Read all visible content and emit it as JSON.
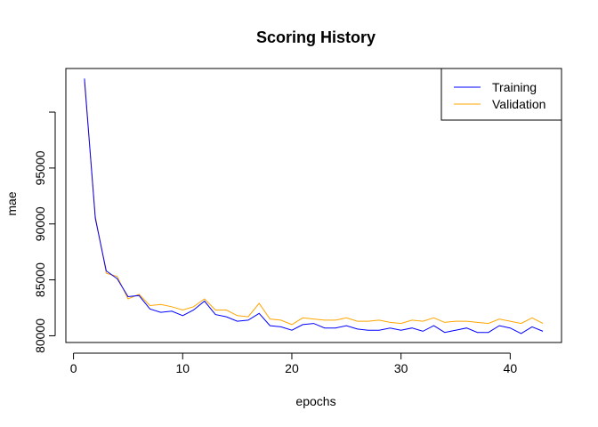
{
  "chart_data": {
    "type": "line",
    "title": "Scoring History",
    "xlabel": "epochs",
    "ylabel": "mae",
    "xlim": [
      -0.7,
      44.7
    ],
    "ylim": [
      79400,
      103900
    ],
    "xticks": [
      0,
      10,
      20,
      30,
      40
    ],
    "yticks": [
      80000,
      85000,
      90000,
      95000,
      100000
    ],
    "ytick_labels": [
      "80000",
      "85000",
      "90000",
      "95000",
      ""
    ],
    "legend_position": "top-right",
    "grid": false,
    "series": [
      {
        "name": "Training",
        "color": "#0000ff",
        "x": [
          1,
          2,
          3,
          4,
          5,
          6,
          7,
          8,
          9,
          10,
          11,
          12,
          13,
          14,
          15,
          16,
          17,
          18,
          19,
          20,
          21,
          22,
          23,
          24,
          25,
          26,
          27,
          28,
          29,
          30,
          31,
          32,
          33,
          34,
          35,
          36,
          37,
          38,
          39,
          40,
          41,
          42,
          43
        ],
        "values": [
          103000,
          90500,
          85800,
          85100,
          83500,
          83600,
          82400,
          82100,
          82200,
          81800,
          82300,
          83100,
          81900,
          81700,
          81300,
          81400,
          82000,
          80900,
          80800,
          80500,
          81000,
          81100,
          80700,
          80700,
          80900,
          80600,
          80500,
          80500,
          80700,
          80500,
          80700,
          80400,
          80900,
          80300,
          80500,
          80700,
          80300,
          80300,
          80900,
          80700,
          80200,
          80800,
          80400
        ]
      },
      {
        "name": "Validation",
        "color": "#ffa500",
        "x": [
          1,
          2,
          3,
          4,
          5,
          6,
          7,
          8,
          9,
          10,
          11,
          12,
          13,
          14,
          15,
          16,
          17,
          18,
          19,
          20,
          21,
          22,
          23,
          24,
          25,
          26,
          27,
          28,
          29,
          30,
          31,
          32,
          33,
          34,
          35,
          36,
          37,
          38,
          39,
          40,
          41,
          42,
          43
        ],
        "values": [
          102700,
          90700,
          85600,
          85300,
          83300,
          83700,
          82700,
          82800,
          82600,
          82300,
          82600,
          83300,
          82300,
          82300,
          81800,
          81700,
          82900,
          81500,
          81400,
          81000,
          81600,
          81500,
          81400,
          81400,
          81600,
          81300,
          81300,
          81400,
          81200,
          81100,
          81400,
          81300,
          81600,
          81200,
          81300,
          81300,
          81200,
          81100,
          81500,
          81300,
          81100,
          81600,
          81100
        ]
      }
    ]
  }
}
